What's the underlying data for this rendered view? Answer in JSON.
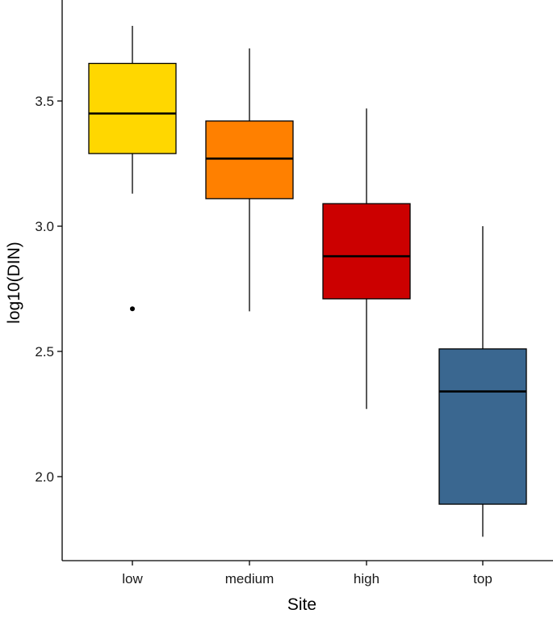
{
  "chart_data": {
    "type": "boxplot",
    "xlabel": "Site",
    "ylabel": "log10(DIN)",
    "ylim": [
      1.7,
      3.82
    ],
    "yticks": [
      2.0,
      2.5,
      3.0,
      3.5
    ],
    "ytick_labels": [
      "2.0",
      "2.5",
      "3.0",
      "3.5"
    ],
    "grid": false,
    "legend": "none",
    "categories": [
      "low",
      "medium",
      "high",
      "top"
    ],
    "boxes": [
      {
        "category": "low",
        "whisker_low": 3.13,
        "q1": 3.29,
        "median": 3.45,
        "q3": 3.65,
        "whisker_high": 3.8,
        "outliers": [
          2.67
        ],
        "color": "#FFD700"
      },
      {
        "category": "medium",
        "whisker_low": 2.66,
        "q1": 3.11,
        "median": 3.27,
        "q3": 3.42,
        "whisker_high": 3.71,
        "outliers": [],
        "color": "#FF8000"
      },
      {
        "category": "high",
        "whisker_low": 2.27,
        "q1": 2.71,
        "median": 2.88,
        "q3": 3.09,
        "whisker_high": 3.47,
        "outliers": [],
        "color": "#CC0000"
      },
      {
        "category": "top",
        "whisker_low": 1.76,
        "q1": 1.89,
        "median": 2.34,
        "q3": 2.51,
        "whisker_high": 3.0,
        "outliers": [],
        "color": "#3A6790"
      }
    ]
  }
}
